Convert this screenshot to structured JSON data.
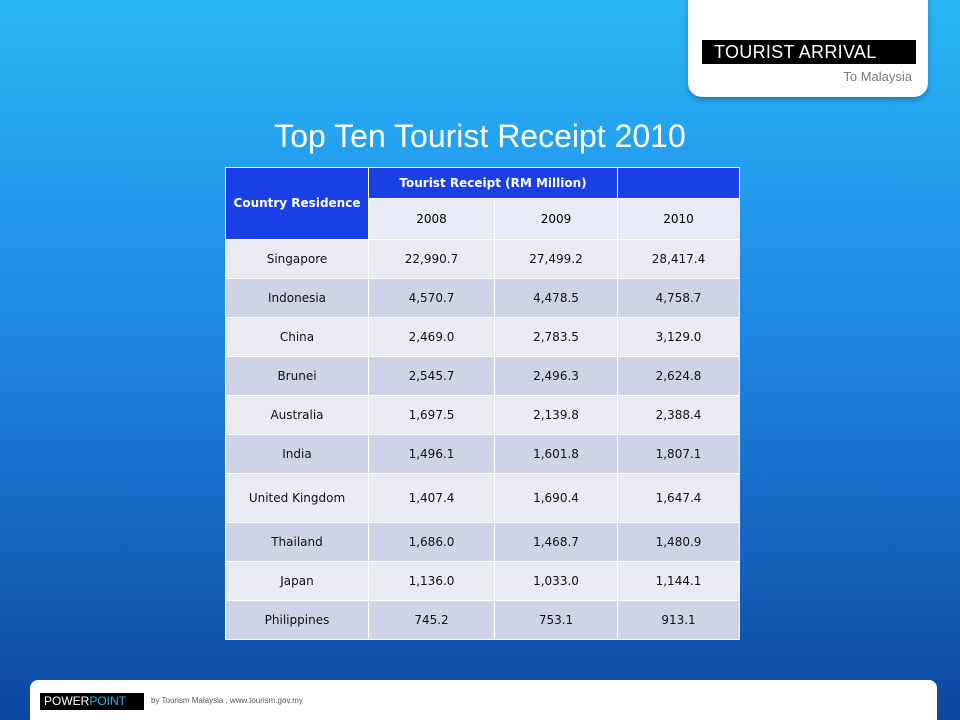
{
  "badge": {
    "title": "TOURIST ARRIVAL",
    "subtitle": "To Malaysia"
  },
  "slide_title": "Top Ten Tourist Receipt 2010",
  "table": {
    "col_country": "Country Residence",
    "col_group": "Tourist Receipt (RM Million)",
    "years": [
      "2008",
      "2009",
      "2010"
    ],
    "rows": [
      [
        "Singapore",
        "22,990.7",
        "27,499.2",
        "28,417.4"
      ],
      [
        "Indonesia",
        "4,570.7",
        "4,478.5",
        "4,758.7"
      ],
      [
        "China",
        "2,469.0",
        "2,783.5",
        "3,129.0"
      ],
      [
        "Brunei",
        "2,545.7",
        "2,496.3",
        "2,624.8"
      ],
      [
        "Australia",
        "1,697.5",
        "2,139.8",
        "2,388.4"
      ],
      [
        "India",
        "1,496.1",
        "1,601.8",
        "1,807.1"
      ],
      [
        "United Kingdom",
        "1,407.4",
        "1,690.4",
        "1,647.4"
      ],
      [
        "Thailand",
        "1,686.0",
        "1,468.7",
        "1,480.9"
      ],
      [
        "Japan",
        "1,136.0",
        "1,033.0",
        "1,144.1"
      ],
      [
        "Philippines",
        "745.2",
        "753.1",
        "913.1"
      ]
    ]
  },
  "footer": {
    "logo_part1": "POWER",
    "logo_part2": "POINT",
    "note": "by Tourism Malaysia . www.tourism.gov.my"
  }
}
